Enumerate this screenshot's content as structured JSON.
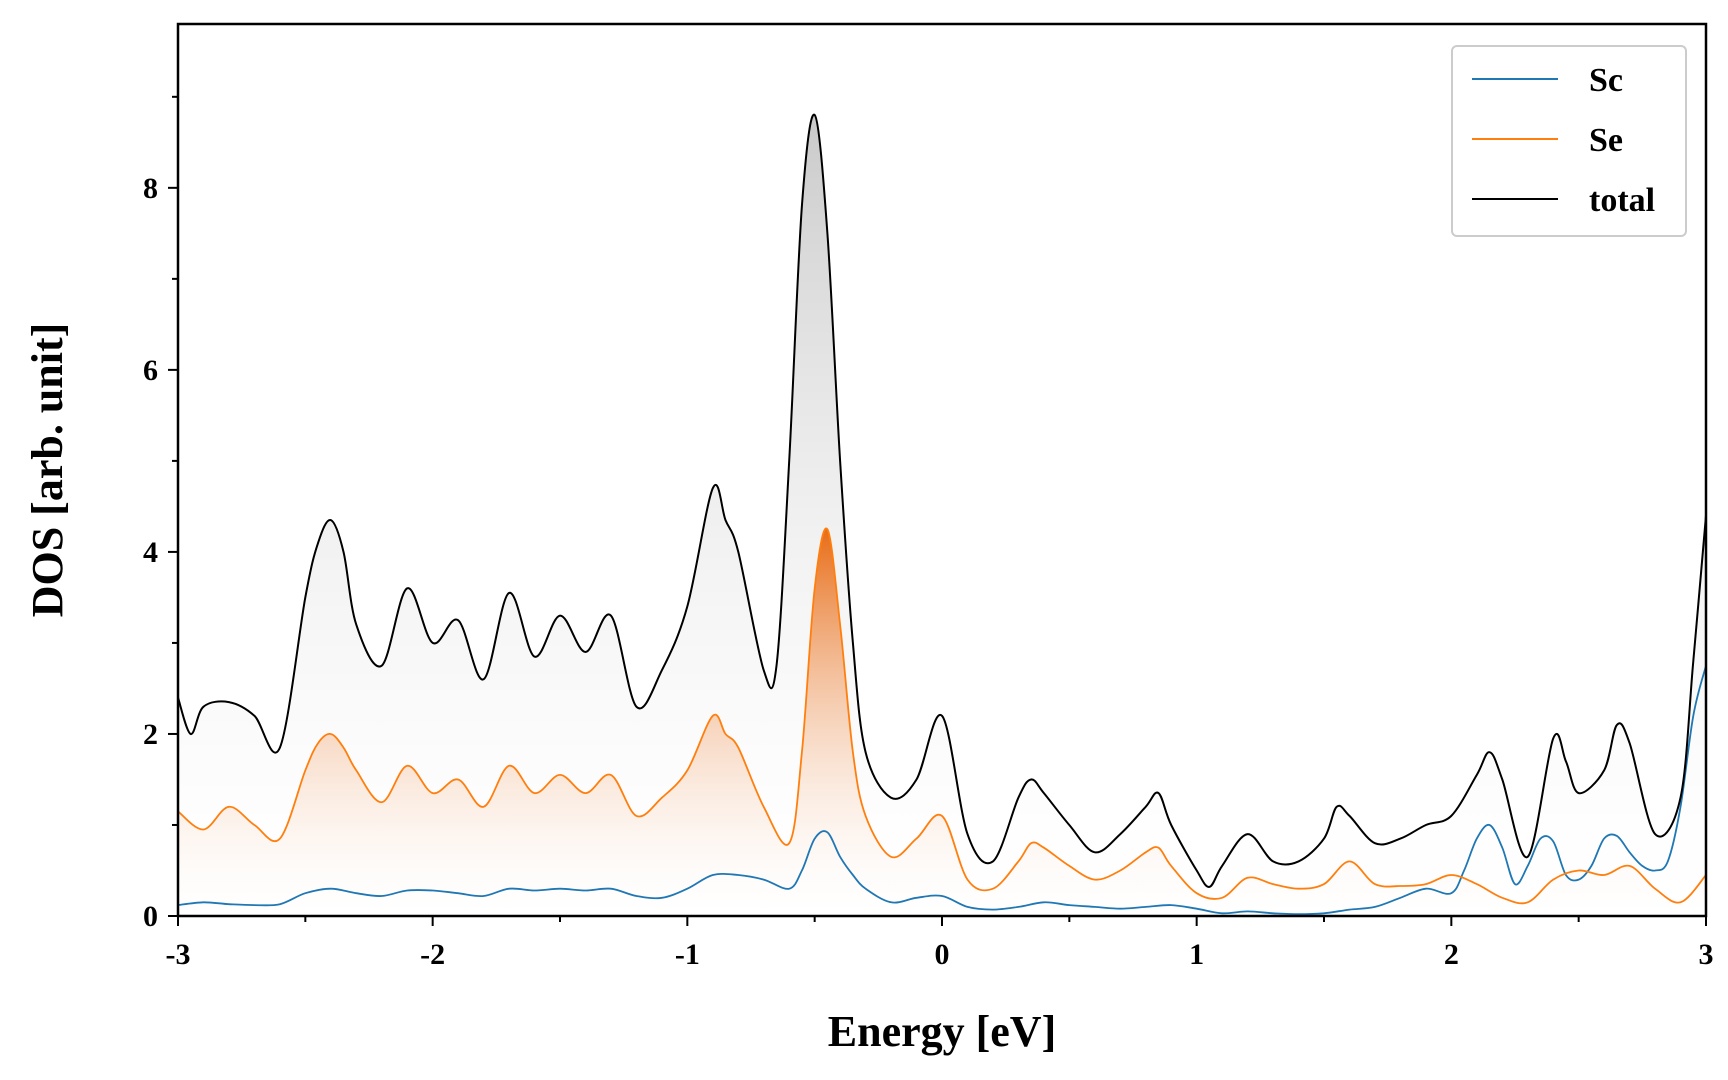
{
  "chart_data": {
    "type": "line",
    "xlabel": "Energy [eV]",
    "ylabel": "DOS [arb. unit]",
    "xlim": [
      -3,
      3
    ],
    "ylim": [
      0,
      9.8
    ],
    "xticks": [
      -3,
      -2,
      -1,
      0,
      1,
      2,
      3
    ],
    "yticks": [
      0,
      2,
      4,
      6,
      8
    ],
    "grid": false,
    "legend_position": "top-right",
    "legend": [
      "Sc",
      "Se",
      "total"
    ],
    "series": [
      {
        "name": "Sc",
        "color": "#1f77b4",
        "fill": false,
        "x": [
          -3.0,
          -2.9,
          -2.8,
          -2.7,
          -2.6,
          -2.5,
          -2.4,
          -2.3,
          -2.2,
          -2.1,
          -2.0,
          -1.9,
          -1.8,
          -1.7,
          -1.6,
          -1.5,
          -1.4,
          -1.3,
          -1.2,
          -1.1,
          -1.0,
          -0.9,
          -0.8,
          -0.7,
          -0.6,
          -0.55,
          -0.5,
          -0.45,
          -0.4,
          -0.35,
          -0.3,
          -0.2,
          -0.1,
          0.0,
          0.1,
          0.2,
          0.3,
          0.4,
          0.5,
          0.6,
          0.7,
          0.8,
          0.9,
          1.0,
          1.1,
          1.2,
          1.3,
          1.4,
          1.5,
          1.6,
          1.7,
          1.8,
          1.9,
          2.0,
          2.05,
          2.1,
          2.15,
          2.2,
          2.25,
          2.3,
          2.35,
          2.4,
          2.45,
          2.5,
          2.55,
          2.6,
          2.65,
          2.7,
          2.75,
          2.8,
          2.85,
          2.9,
          2.95,
          3.0
        ],
        "values": [
          0.12,
          0.15,
          0.13,
          0.12,
          0.13,
          0.25,
          0.3,
          0.25,
          0.22,
          0.28,
          0.28,
          0.25,
          0.22,
          0.3,
          0.28,
          0.3,
          0.28,
          0.3,
          0.22,
          0.2,
          0.3,
          0.45,
          0.45,
          0.4,
          0.3,
          0.5,
          0.85,
          0.92,
          0.65,
          0.45,
          0.3,
          0.15,
          0.2,
          0.22,
          0.1,
          0.07,
          0.1,
          0.15,
          0.12,
          0.1,
          0.08,
          0.1,
          0.12,
          0.08,
          0.03,
          0.05,
          0.03,
          0.02,
          0.03,
          0.07,
          0.1,
          0.2,
          0.3,
          0.25,
          0.5,
          0.85,
          1.0,
          0.75,
          0.35,
          0.55,
          0.85,
          0.82,
          0.45,
          0.4,
          0.55,
          0.85,
          0.88,
          0.7,
          0.55,
          0.5,
          0.6,
          1.2,
          2.2,
          2.75
        ]
      },
      {
        "name": "Se",
        "color": "#ff7f0e",
        "fill": true,
        "x": [
          -3.0,
          -2.9,
          -2.8,
          -2.7,
          -2.6,
          -2.5,
          -2.45,
          -2.4,
          -2.35,
          -2.3,
          -2.2,
          -2.1,
          -2.0,
          -1.9,
          -1.8,
          -1.7,
          -1.6,
          -1.5,
          -1.4,
          -1.3,
          -1.2,
          -1.1,
          -1.0,
          -0.9,
          -0.85,
          -0.8,
          -0.7,
          -0.6,
          -0.55,
          -0.5,
          -0.45,
          -0.4,
          -0.35,
          -0.3,
          -0.2,
          -0.1,
          0.0,
          0.1,
          0.2,
          0.3,
          0.35,
          0.4,
          0.5,
          0.6,
          0.7,
          0.8,
          0.85,
          0.9,
          1.0,
          1.1,
          1.2,
          1.3,
          1.4,
          1.5,
          1.6,
          1.7,
          1.8,
          1.9,
          2.0,
          2.1,
          2.2,
          2.3,
          2.4,
          2.5,
          2.6,
          2.7,
          2.8,
          2.9,
          3.0
        ],
        "values": [
          1.15,
          0.95,
          1.2,
          1.0,
          0.85,
          1.6,
          1.9,
          2.0,
          1.85,
          1.6,
          1.25,
          1.65,
          1.35,
          1.5,
          1.2,
          1.65,
          1.35,
          1.55,
          1.35,
          1.55,
          1.1,
          1.3,
          1.6,
          2.2,
          2.0,
          1.85,
          1.2,
          0.8,
          1.8,
          3.6,
          4.25,
          3.2,
          1.8,
          1.1,
          0.65,
          0.85,
          1.1,
          0.4,
          0.3,
          0.6,
          0.8,
          0.75,
          0.55,
          0.4,
          0.5,
          0.7,
          0.75,
          0.55,
          0.25,
          0.2,
          0.42,
          0.35,
          0.3,
          0.35,
          0.6,
          0.35,
          0.33,
          0.35,
          0.45,
          0.35,
          0.2,
          0.15,
          0.4,
          0.5,
          0.45,
          0.55,
          0.3,
          0.15,
          0.45
        ]
      },
      {
        "name": "total",
        "color": "#000000",
        "fill": true,
        "x": [
          -3.0,
          -2.95,
          -2.9,
          -2.8,
          -2.7,
          -2.6,
          -2.5,
          -2.45,
          -2.4,
          -2.35,
          -2.3,
          -2.2,
          -2.1,
          -2.0,
          -1.9,
          -1.8,
          -1.7,
          -1.6,
          -1.5,
          -1.4,
          -1.3,
          -1.2,
          -1.1,
          -1.0,
          -0.9,
          -0.85,
          -0.8,
          -0.7,
          -0.65,
          -0.6,
          -0.55,
          -0.5,
          -0.45,
          -0.4,
          -0.35,
          -0.3,
          -0.2,
          -0.1,
          0.0,
          0.1,
          0.2,
          0.3,
          0.35,
          0.4,
          0.5,
          0.6,
          0.7,
          0.8,
          0.85,
          0.9,
          1.0,
          1.05,
          1.1,
          1.2,
          1.3,
          1.4,
          1.5,
          1.55,
          1.6,
          1.7,
          1.8,
          1.9,
          2.0,
          2.1,
          2.15,
          2.2,
          2.3,
          2.4,
          2.45,
          2.5,
          2.6,
          2.65,
          2.7,
          2.8,
          2.9,
          2.95,
          3.0
        ],
        "values": [
          2.4,
          2.0,
          2.3,
          2.35,
          2.2,
          1.85,
          3.5,
          4.1,
          4.35,
          4.0,
          3.2,
          2.75,
          3.6,
          3.0,
          3.25,
          2.6,
          3.55,
          2.85,
          3.3,
          2.9,
          3.3,
          2.3,
          2.7,
          3.4,
          4.7,
          4.35,
          4.0,
          2.7,
          2.75,
          5.0,
          7.8,
          8.8,
          7.5,
          5.0,
          3.0,
          1.8,
          1.3,
          1.5,
          2.2,
          0.9,
          0.6,
          1.3,
          1.5,
          1.35,
          1.0,
          0.7,
          0.9,
          1.2,
          1.35,
          1.0,
          0.5,
          0.32,
          0.55,
          0.9,
          0.6,
          0.6,
          0.85,
          1.2,
          1.1,
          0.8,
          0.85,
          1.0,
          1.1,
          1.55,
          1.8,
          1.5,
          0.65,
          1.95,
          1.7,
          1.35,
          1.6,
          2.1,
          1.9,
          0.9,
          1.3,
          2.8,
          4.4
        ]
      }
    ]
  }
}
